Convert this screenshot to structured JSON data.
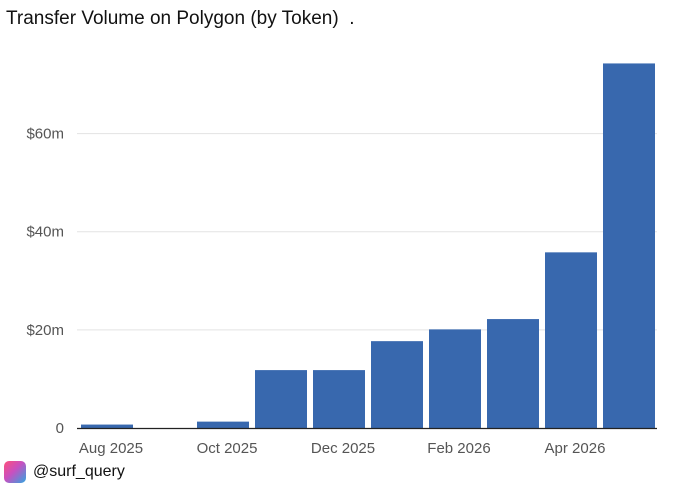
{
  "chart_data": {
    "type": "bar",
    "title": "Transfer Volume on Polygon (by Token)  .",
    "x": [
      "2025-08",
      "2025-09",
      "2025-10",
      "2025-11",
      "2025-12",
      "2026-01",
      "2026-02",
      "2026-03",
      "2026-04",
      "2026-05"
    ],
    "values": [
      0.7,
      0,
      1.3,
      11.8,
      11.8,
      17.7,
      20.1,
      22.2,
      35.8,
      74.3
    ],
    "value_unit": "$ millions",
    "xlabel": "",
    "ylabel": "",
    "ylim": [
      0,
      75
    ],
    "yticks": [
      0,
      20,
      40,
      60
    ],
    "ytick_labels": [
      "0",
      "$20m",
      "$40m",
      "$60m"
    ],
    "xtick_positions": [
      "2025-08",
      "2025-10",
      "2025-12",
      "2026-02",
      "2026-04"
    ],
    "xtick_labels": [
      "Aug 2025",
      "Oct 2025",
      "Dec 2025",
      "Feb 2026",
      "Apr 2026"
    ],
    "grid": "horizontal",
    "bar_color": "#3868ae",
    "grid_color": "#e3e3e3",
    "axis_color": "#222222"
  },
  "footer": {
    "handle": "@surf_query",
    "logo_icon": "surf-logo-icon"
  }
}
